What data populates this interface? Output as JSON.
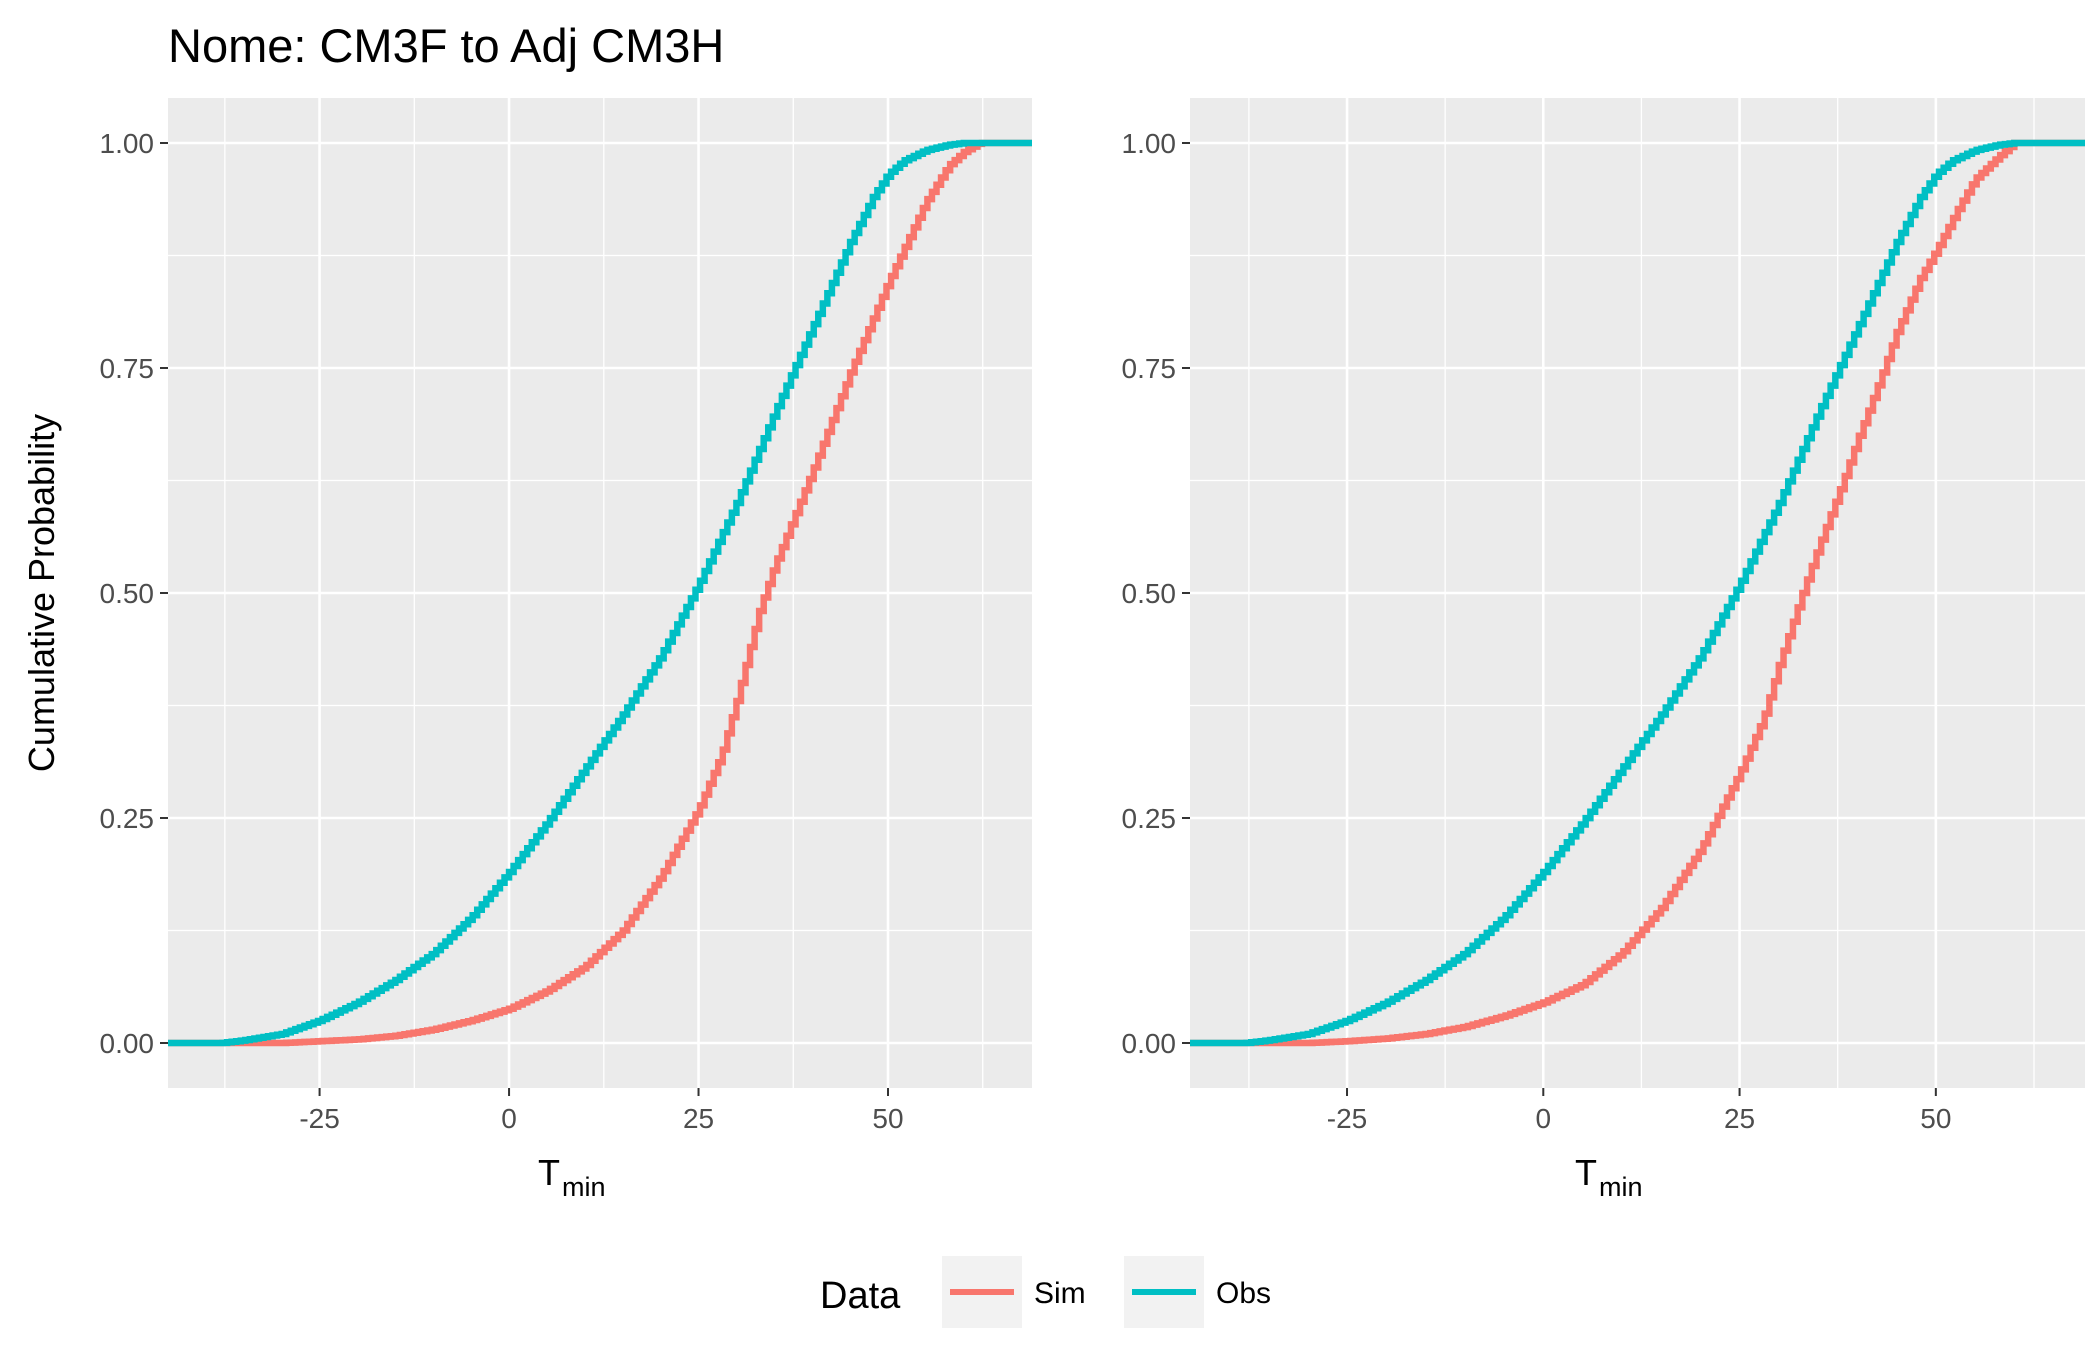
{
  "chart_data": {
    "type": "line",
    "title": "Nome: CM3F to Adj CM3H",
    "ylabel": "Cumulative Probability",
    "xlabel_main": "T",
    "xlabel_sub": "min",
    "legend": {
      "title": "Data",
      "position": "bottom",
      "entries": [
        {
          "name": "Sim",
          "color": "#F8766D"
        },
        {
          "name": "Obs",
          "color": "#00BFC4"
        }
      ]
    },
    "grid": true,
    "panels": [
      {
        "xlim": [
          -45,
          69
        ],
        "ylim": [
          -0.05,
          1.05
        ],
        "x_ticks": [
          -25,
          0,
          25,
          50
        ],
        "x_tick_labels": [
          "-25",
          "0",
          "25",
          "50"
        ],
        "y_ticks": [
          0,
          0.25,
          0.5,
          0.75,
          1
        ],
        "y_tick_labels": [
          "0.00",
          "0.25",
          "0.50",
          "0.75",
          "1.00"
        ],
        "series": [
          {
            "name": "Sim",
            "color": "#F8766D",
            "x": [
              -45,
              -30,
              -25,
              -20,
              -15,
              -10,
              -5,
              0,
              5,
              10,
              15,
              20,
              25,
              28,
              30,
              33,
              35,
              40,
              45,
              50,
              55,
              58,
              60,
              62,
              69
            ],
            "y": [
              0,
              0,
              0.002,
              0.004,
              0.008,
              0.015,
              0.025,
              0.038,
              0.058,
              0.085,
              0.125,
              0.185,
              0.26,
              0.32,
              0.38,
              0.48,
              0.53,
              0.635,
              0.745,
              0.845,
              0.935,
              0.975,
              0.99,
              1.0,
              1.0
            ]
          },
          {
            "name": "Obs",
            "color": "#00BFC4",
            "x": [
              -45,
              -38,
              -35,
              -30,
              -25,
              -20,
              -15,
              -10,
              -5,
              0,
              5,
              10,
              15,
              20,
              25,
              30,
              35,
              40,
              45,
              48,
              50,
              52,
              55,
              58,
              60,
              69
            ],
            "y": [
              0,
              0,
              0.003,
              0.01,
              0.025,
              0.045,
              0.07,
              0.1,
              0.14,
              0.19,
              0.245,
              0.305,
              0.365,
              0.43,
              0.51,
              0.6,
              0.7,
              0.795,
              0.89,
              0.94,
              0.965,
              0.98,
              0.992,
              0.998,
              1.0,
              1.0
            ]
          }
        ]
      },
      {
        "xlim": [
          -45,
          69
        ],
        "ylim": [
          -0.05,
          1.05
        ],
        "x_ticks": [
          -25,
          0,
          25,
          50
        ],
        "x_tick_labels": [
          "-25",
          "0",
          "25",
          "50"
        ],
        "y_ticks": [
          0,
          0.25,
          0.5,
          0.75,
          1
        ],
        "y_tick_labels": [
          "0.00",
          "0.25",
          "0.50",
          "0.75",
          "1.00"
        ],
        "series": [
          {
            "name": "Sim",
            "color": "#F8766D",
            "x": [
              -45,
              -30,
              -25,
              -20,
              -15,
              -10,
              -5,
              0,
              5,
              10,
              15,
              20,
              25,
              28,
              30,
              33,
              35,
              38,
              40,
              43,
              45,
              48,
              50,
              53,
              55,
              58,
              60,
              69
            ],
            "y": [
              0,
              0,
              0.002,
              0.005,
              0.01,
              0.018,
              0.03,
              0.045,
              0.065,
              0.1,
              0.15,
              0.215,
              0.3,
              0.36,
              0.42,
              0.5,
              0.55,
              0.62,
              0.67,
              0.74,
              0.79,
              0.85,
              0.88,
              0.93,
              0.96,
              0.985,
              1.0,
              1.0
            ]
          },
          {
            "name": "Obs",
            "color": "#00BFC4",
            "x": [
              -45,
              -38,
              -35,
              -30,
              -25,
              -20,
              -15,
              -10,
              -5,
              0,
              5,
              10,
              15,
              20,
              25,
              30,
              35,
              40,
              45,
              48,
              50,
              52,
              55,
              58,
              60,
              69
            ],
            "y": [
              0,
              0,
              0.003,
              0.01,
              0.025,
              0.045,
              0.07,
              0.1,
              0.14,
              0.19,
              0.245,
              0.305,
              0.365,
              0.43,
              0.51,
              0.6,
              0.7,
              0.795,
              0.89,
              0.94,
              0.965,
              0.98,
              0.992,
              0.998,
              1.0,
              1.0
            ]
          }
        ]
      }
    ]
  }
}
